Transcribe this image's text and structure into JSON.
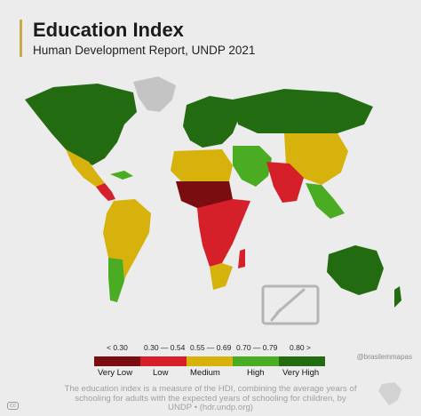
{
  "header": {
    "title": "Education Index",
    "subtitle": "Human Development Report, UNDP 2021"
  },
  "legend": {
    "ranges": [
      "< 0.30",
      "0.30 — 0.54",
      "0.55 — 0.69",
      "0.70 — 0.79",
      "0.80 >"
    ],
    "categories": [
      {
        "label": "Very Low",
        "color": "#7a0d10"
      },
      {
        "label": "Low",
        "color": "#d5202a"
      },
      {
        "label": "Medium",
        "color": "#d8b20c"
      },
      {
        "label": "High",
        "color": "#4aac22"
      },
      {
        "label": "Very High",
        "color": "#236b10"
      }
    ],
    "no_data_color": "#c4c4c4"
  },
  "footnote": "The education index is a measure of the HDI, combining the average years of schooling for adults with the expected years of schooling for children, by UNDP • (hdr.undp.org)",
  "credit": "@brasilemmapas",
  "icons": [
    "pencil-hand-icon",
    "brazil-outline-icon",
    "creative-commons-icon"
  ]
}
